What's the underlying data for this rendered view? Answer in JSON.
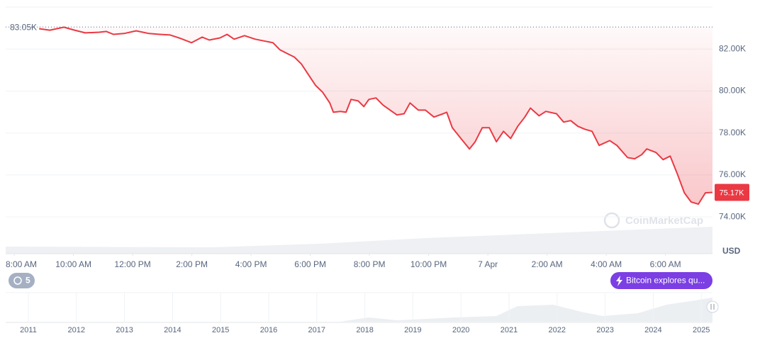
{
  "chart_data": {
    "type": "line",
    "x": [
      0.84,
      1.2,
      1.68,
      2.04,
      2.4,
      2.87,
      3.11,
      3.35,
      3.71,
      4.12,
      4.55,
      4.91,
      5.27,
      5.63,
      5.99,
      6.35,
      6.59,
      6.95,
      7.19,
      7.43,
      7.78,
      8.14,
      8.5,
      8.74,
      8.98,
      9.22,
      9.46,
      9.7,
      9.94,
      10.18,
      10.42,
      10.66,
      10.78,
      11.02,
      11.21,
      11.38,
      11.62,
      11.81,
      11.98,
      12.22,
      12.46,
      12.7,
      12.93,
      13.17,
      13.37,
      13.65,
      13.89,
      14.18,
      14.49,
      14.61,
      14.8,
      15.09,
      15.38,
      15.57,
      15.81,
      16.05,
      16.29,
      16.53,
      16.77,
      17.01,
      17.25,
      17.44,
      17.73,
      17.96,
      18.32,
      18.56,
      18.8,
      19.04,
      19.28,
      19.52,
      19.76,
      20.12,
      20.36,
      20.72,
      20.96,
      21.2,
      21.37,
      21.68,
      21.92,
      22.16,
      22.4,
      22.64,
      22.87,
      23.11,
      23.35,
      23.59
    ],
    "series": [
      {
        "color": "#ea3943",
        "values": [
          82970,
          82900,
          83040,
          82900,
          82770,
          82800,
          82840,
          82700,
          82740,
          82870,
          82740,
          82700,
          82670,
          82500,
          82300,
          82570,
          82430,
          82530,
          82700,
          82470,
          82640,
          82470,
          82370,
          82300,
          81960,
          81790,
          81620,
          81290,
          80780,
          80270,
          79940,
          79430,
          78990,
          79030,
          78990,
          79600,
          79530,
          79260,
          79600,
          79670,
          79330,
          79090,
          78860,
          78920,
          79430,
          79090,
          79090,
          78760,
          78920,
          78990,
          78250,
          77740,
          77240,
          77580,
          78250,
          78250,
          77580,
          78080,
          77740,
          78320,
          78760,
          79190,
          78820,
          79030,
          78920,
          78520,
          78590,
          78320,
          78180,
          78080,
          77410,
          77640,
          77410,
          76830,
          76770,
          76970,
          77240,
          77070,
          76730,
          76900,
          76060,
          75150,
          74710,
          74610,
          75150,
          75170
        ]
      }
    ],
    "xlim": [
      -0.29,
      23.59
    ],
    "xticks": [
      {
        "value": 0,
        "label": "8:00 AM"
      },
      {
        "value": 2,
        "label": "10:00 AM"
      },
      {
        "value": 4,
        "label": "12:00 PM"
      },
      {
        "value": 6,
        "label": "2:00 PM"
      },
      {
        "value": 8,
        "label": "4:00 PM"
      },
      {
        "value": 10,
        "label": "6:00 PM"
      },
      {
        "value": 12,
        "label": "8:00 PM"
      },
      {
        "value": 14,
        "label": "10:00 PM"
      },
      {
        "value": 16,
        "label": "7 Apr"
      },
      {
        "value": 18,
        "label": "2:00 AM"
      },
      {
        "value": 20,
        "label": "4:00 AM"
      },
      {
        "value": 22,
        "label": "6:00 AM"
      }
    ],
    "ylim": [
      72250,
      84000
    ],
    "yticks": [
      {
        "value": 74000,
        "label": "74.00K"
      },
      {
        "value": 76000,
        "label": "76.00K"
      },
      {
        "value": 78000,
        "label": "78.00K"
      },
      {
        "value": 80000,
        "label": "80.00K"
      },
      {
        "value": 82000,
        "label": "82.00K"
      }
    ],
    "grid": true,
    "reference": {
      "value": 83050,
      "label": "83.05K"
    },
    "last_price": {
      "value": 75170,
      "label": "75.17K"
    },
    "currency": "USD",
    "watermark": "CoinMarketCap",
    "alert_count": "5",
    "news": "Bitcoin explores qu...",
    "navigator_years": [
      "2011",
      "2012",
      "2013",
      "2014",
      "2015",
      "2016",
      "2017",
      "2018",
      "2019",
      "2020",
      "2021",
      "2022",
      "2023",
      "2024",
      "2025"
    ]
  }
}
